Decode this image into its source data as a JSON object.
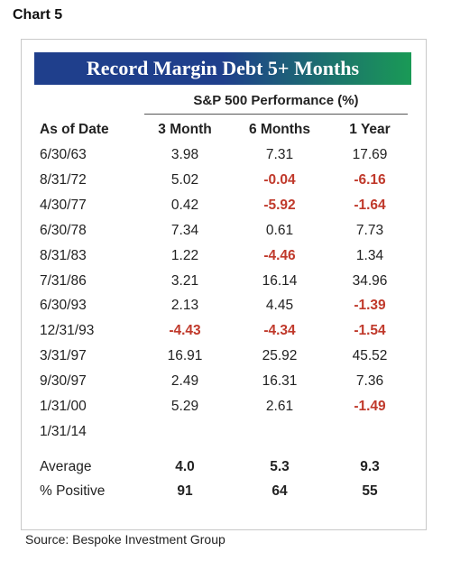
{
  "chart_label": "Chart 5",
  "title": "Record Margin Debt 5+ Months",
  "group_header": "S&P 500 Performance (%)",
  "columns": [
    "As of Date",
    "3 Month",
    "6 Months",
    "1 Year"
  ],
  "rows": [
    {
      "date": "6/30/63",
      "v3m": "3.98",
      "v6m": "7.31",
      "v1y": "17.69"
    },
    {
      "date": "8/31/72",
      "v3m": "5.02",
      "v6m": "-0.04",
      "v1y": "-6.16"
    },
    {
      "date": "4/30/77",
      "v3m": "0.42",
      "v6m": "-5.92",
      "v1y": "-1.64"
    },
    {
      "date": "6/30/78",
      "v3m": "7.34",
      "v6m": "0.61",
      "v1y": "7.73"
    },
    {
      "date": "8/31/83",
      "v3m": "1.22",
      "v6m": "-4.46",
      "v1y": "1.34"
    },
    {
      "date": "7/31/86",
      "v3m": "3.21",
      "v6m": "16.14",
      "v1y": "34.96"
    },
    {
      "date": "6/30/93",
      "v3m": "2.13",
      "v6m": "4.45",
      "v1y": "-1.39"
    },
    {
      "date": "12/31/93",
      "v3m": "-4.43",
      "v6m": "-4.34",
      "v1y": "-1.54"
    },
    {
      "date": "3/31/97",
      "v3m": "16.91",
      "v6m": "25.92",
      "v1y": "45.52"
    },
    {
      "date": "9/30/97",
      "v3m": "2.49",
      "v6m": "16.31",
      "v1y": "7.36"
    },
    {
      "date": "1/31/00",
      "v3m": "5.29",
      "v6m": "2.61",
      "v1y": "-1.49"
    },
    {
      "date": "1/31/14",
      "v3m": "",
      "v6m": "",
      "v1y": ""
    }
  ],
  "summary": [
    {
      "label": "Average",
      "v3m": "4.0",
      "v6m": "5.3",
      "v1y": "9.3"
    },
    {
      "label": "% Positive",
      "v3m": "91",
      "v6m": "64",
      "v1y": "55"
    }
  ],
  "source": "Source: Bespoke Investment Group",
  "colors": {
    "banner_start": "#1f3f8c",
    "banner_end": "#1a9a56",
    "negative": "#c0392b",
    "text": "#222222"
  },
  "chart_data": {
    "type": "table",
    "title": "Record Margin Debt 5+ Months",
    "subtitle": "S&P 500 Performance (%)",
    "columns": [
      "As of Date",
      "3 Month",
      "6 Months",
      "1 Year"
    ],
    "rows": [
      [
        "6/30/63",
        3.98,
        7.31,
        17.69
      ],
      [
        "8/31/72",
        5.02,
        -0.04,
        -6.16
      ],
      [
        "4/30/77",
        0.42,
        -5.92,
        -1.64
      ],
      [
        "6/30/78",
        7.34,
        0.61,
        7.73
      ],
      [
        "8/31/83",
        1.22,
        -4.46,
        1.34
      ],
      [
        "7/31/86",
        3.21,
        16.14,
        34.96
      ],
      [
        "6/30/93",
        2.13,
        4.45,
        -1.39
      ],
      [
        "12/31/93",
        -4.43,
        -4.34,
        -1.54
      ],
      [
        "3/31/97",
        16.91,
        25.92,
        45.52
      ],
      [
        "9/30/97",
        2.49,
        16.31,
        7.36
      ],
      [
        "1/31/00",
        5.29,
        2.61,
        -1.49
      ],
      [
        "1/31/14",
        null,
        null,
        null
      ]
    ],
    "summary": [
      [
        "Average",
        4.0,
        5.3,
        9.3
      ],
      [
        "% Positive",
        91,
        64,
        55
      ]
    ]
  }
}
